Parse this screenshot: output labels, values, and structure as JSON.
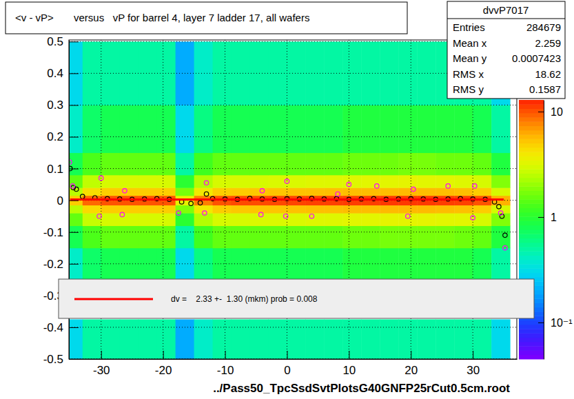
{
  "chart_data": {
    "type": "heatmap",
    "title": "<v - vP>       versus   vP for barrel 4, layer 7 ladder 17, all wafers",
    "x_label": "../Pass50_TpcSsdSvtPlotsG40GNFP25rCut0.5cm.root",
    "xlim": [
      -35.2,
      37.1
    ],
    "xticks": [
      -30,
      -20,
      -10,
      0,
      10,
      20,
      30
    ],
    "ylim": [
      -0.5,
      0.505
    ],
    "yticks": [
      -0.5,
      -0.4,
      -0.3,
      -0.2,
      -0.1,
      0,
      0.1,
      0.2,
      0.3,
      0.4,
      0.5
    ],
    "grid": true,
    "x_bins": [
      -36,
      -33,
      -30,
      -27,
      -24,
      -21,
      -18,
      -15,
      -12,
      -9,
      -6,
      -3,
      0,
      3,
      6,
      9,
      12,
      15,
      18,
      21,
      24,
      27,
      30,
      33,
      36
    ],
    "y_bins": [
      -0.5,
      -0.375,
      -0.25,
      -0.15,
      -0.08,
      -0.04,
      -0.015,
      0.015,
      0.04,
      0.08,
      0.15,
      0.3,
      0.5
    ],
    "cells": [
      [
        0.3,
        0.5,
        0.5,
        0.5,
        0.5,
        0.5,
        0.2,
        0.4,
        0.5,
        0.5,
        0.5,
        0.5,
        0.5,
        0.5,
        0.5,
        0.5,
        0.5,
        0.5,
        0.5,
        0.5,
        0.5,
        0.5,
        0.5,
        0.3
      ],
      [
        null,
        null,
        null,
        null,
        null,
        null,
        null,
        null,
        null,
        null,
        null,
        null,
        null,
        null,
        null,
        null,
        null,
        null,
        null,
        null,
        null,
        null,
        null,
        null
      ],
      [
        0.4,
        0.7,
        0.8,
        0.8,
        0.8,
        0.8,
        0.3,
        0.6,
        0.8,
        0.8,
        0.8,
        0.8,
        0.8,
        0.8,
        0.8,
        0.9,
        0.9,
        0.9,
        0.9,
        0.9,
        0.9,
        0.9,
        0.8,
        0.5
      ],
      [
        0.8,
        1.3,
        1.5,
        1.5,
        1.5,
        1.5,
        0.5,
        1.2,
        1.5,
        1.5,
        1.5,
        1.5,
        1.5,
        1.5,
        1.5,
        1.6,
        1.6,
        1.7,
        1.7,
        1.7,
        1.7,
        1.6,
        1.5,
        0.9
      ],
      [
        1.5,
        2.7,
        3,
        3,
        3,
        3,
        1,
        2.4,
        3,
        3,
        3.1,
        3.1,
        3.1,
        3.2,
        3.2,
        3.3,
        3.3,
        3.4,
        3.4,
        3.4,
        3.3,
        3.3,
        3,
        1.8
      ],
      [
        2.5,
        4.5,
        5,
        5,
        5,
        5,
        1.8,
        4,
        5,
        5.2,
        5.3,
        5.3,
        5.4,
        5.5,
        5.5,
        5.6,
        5.6,
        5.7,
        5.7,
        5.7,
        5.6,
        5.5,
        5,
        3
      ],
      [
        5,
        9,
        10,
        10,
        10,
        10,
        3.5,
        8,
        10,
        10.5,
        10.5,
        10.6,
        10.8,
        11,
        11,
        11.2,
        11.2,
        11.4,
        11.4,
        11.4,
        11.2,
        11,
        10,
        6
      ],
      [
        2.5,
        4.4,
        5,
        5,
        5,
        5,
        1.7,
        4,
        5,
        5.1,
        5.2,
        5.3,
        5.4,
        5.4,
        5.5,
        5.6,
        5.6,
        5.6,
        5.7,
        5.6,
        5.6,
        5.5,
        5,
        3
      ],
      [
        1.5,
        2.6,
        3,
        3,
        3,
        3,
        1,
        2.4,
        3,
        3,
        3,
        3.1,
        3.1,
        3.2,
        3.2,
        3.2,
        3.3,
        3.3,
        3.4,
        3.3,
        3.3,
        3.2,
        3,
        1.8
      ],
      [
        0.8,
        1.3,
        1.5,
        1.5,
        1.5,
        1.5,
        0.5,
        1.2,
        1.5,
        1.5,
        1.5,
        1.5,
        1.5,
        1.5,
        1.5,
        1.6,
        1.6,
        1.6,
        1.7,
        1.7,
        1.6,
        1.6,
        1.5,
        0.9
      ],
      [
        0.4,
        0.7,
        0.8,
        0.8,
        0.8,
        0.8,
        0.3,
        0.6,
        0.8,
        0.8,
        0.8,
        0.8,
        0.8,
        0.8,
        0.8,
        0.9,
        0.9,
        0.9,
        0.9,
        0.9,
        0.9,
        0.9,
        0.8,
        0.5
      ],
      [
        0.3,
        0.5,
        0.5,
        0.5,
        0.5,
        0.5,
        0.2,
        0.4,
        0.5,
        0.5,
        0.5,
        0.5,
        0.5,
        0.5,
        0.5,
        0.5,
        0.5,
        0.5,
        0.5,
        0.5,
        0.5,
        0.5,
        0.5,
        0.3
      ]
    ],
    "colorbar": {
      "zlim": [
        0.045,
        12.9
      ],
      "log": true,
      "zticks": [
        {
          "value": 0.1,
          "label": "10⁻¹"
        },
        1,
        10
      ]
    },
    "series": [
      {
        "type": "scatter",
        "color": "#000000",
        "marker": "circle",
        "x": [
          -35,
          -34.5,
          -34,
          -33,
          -31,
          -29,
          -27,
          -25,
          -23,
          -21,
          -19,
          -17,
          -15.5,
          -14,
          -13,
          -12,
          -10,
          -8,
          -6,
          -4,
          -2,
          0,
          2,
          4,
          6,
          8,
          10,
          12,
          14,
          16,
          18,
          20,
          22,
          24,
          26,
          28,
          30,
          32,
          33.5,
          34.2,
          34.7,
          35.2
        ],
        "values": [
          0.1,
          0.04,
          0.035,
          0.012,
          0.008,
          0.005,
          0.004,
          0.003,
          0.004,
          0.005,
          0.003,
          -0.005,
          -0.01,
          -0.008,
          0.02,
          0.005,
          0.004,
          0.003,
          0.006,
          0.004,
          0.003,
          0.005,
          0.004,
          0.006,
          0.004,
          0.005,
          0.003,
          0.004,
          0.005,
          0.003,
          0.004,
          0.005,
          0.004,
          0.003,
          0.004,
          0.005,
          0.004,
          0.003,
          -0.005,
          -0.02,
          -0.05,
          -0.11
        ]
      },
      {
        "type": "scatter",
        "color": "#ff00ff",
        "marker": "circle",
        "x": [
          -35.1,
          -34.6,
          -30.3,
          -30,
          -26.2,
          -26.6,
          -17.5,
          -13.3,
          -13,
          -4.2,
          -4,
          -0.2,
          0,
          4,
          8.2,
          10,
          14.5,
          20.4,
          19.5,
          26,
          30.3,
          30,
          34.5,
          35.2
        ],
        "values": [
          0.12,
          0.045,
          -0.05,
          0.07,
          0.03,
          -0.045,
          -0.04,
          -0.04,
          0.055,
          -0.045,
          0.03,
          -0.05,
          0.06,
          -0.05,
          0.02,
          0.05,
          0.045,
          0.035,
          -0.05,
          0.045,
          0.045,
          -0.055,
          -0.04,
          -0.15
        ]
      },
      {
        "type": "line",
        "color": "#ff0000",
        "line_style": "solid",
        "x": [
          -35,
          35
        ],
        "values": [
          0.00233,
          0.00233
        ]
      }
    ],
    "annotation": "dv =    2.33 +-  1.30 (mkm) prob = 0.008",
    "stats": {
      "title": "dvvP7017",
      "rows": [
        {
          "label": "Entries",
          "value": 284679
        },
        {
          "label": "Mean x",
          "value": 2.259
        },
        {
          "label": "Mean y",
          "value": 0.0007423
        },
        {
          "label": "RMS x",
          "value": 18.62
        },
        {
          "label": "RMS y",
          "value": 0.1587
        }
      ]
    }
  }
}
